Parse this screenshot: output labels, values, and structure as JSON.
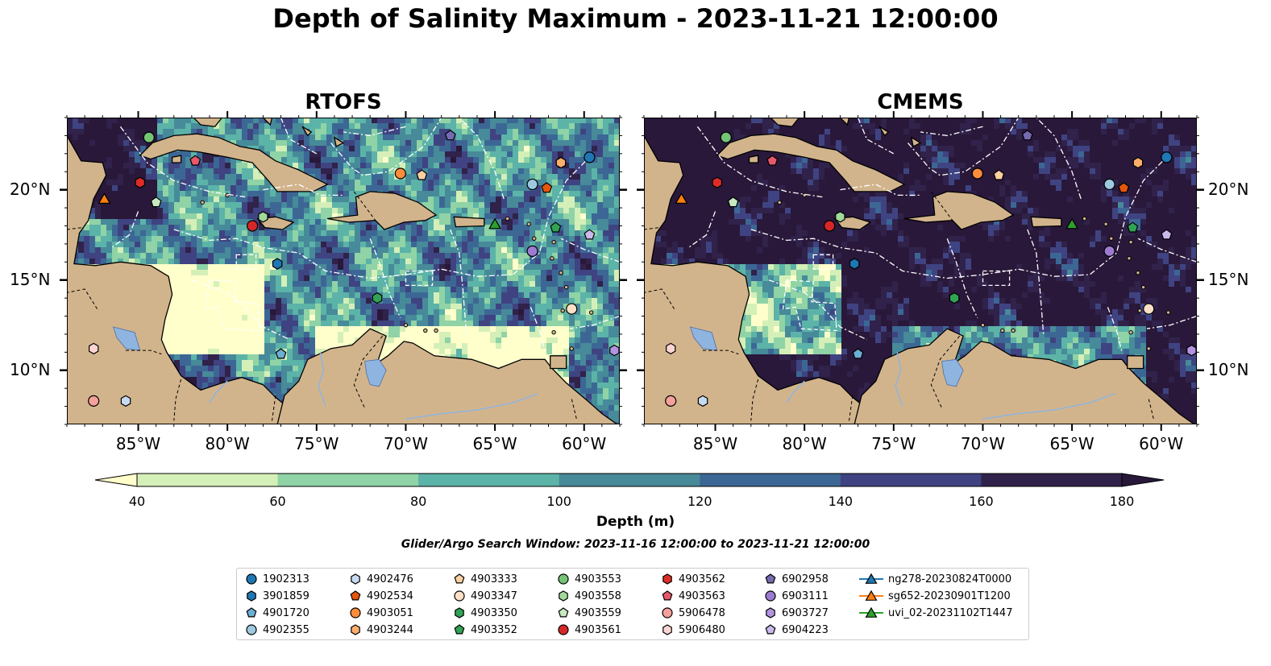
{
  "title": "Depth of Salinity Maximum - 2023-11-21 12:00:00",
  "panels": [
    {
      "title": "RTOFS",
      "seed": 7,
      "bias": 0.0
    },
    {
      "title": "CMEMS",
      "seed": 19,
      "bias": 0.55
    }
  ],
  "map": {
    "lon_range": [
      -89,
      -58
    ],
    "lat_range": [
      7,
      24
    ],
    "lon_ticks": [
      {
        "value": -85,
        "label": "85°W"
      },
      {
        "value": -80,
        "label": "80°W"
      },
      {
        "value": -75,
        "label": "75°W"
      },
      {
        "value": -70,
        "label": "70°W"
      },
      {
        "value": -65,
        "label": "65°W"
      },
      {
        "value": -60,
        "label": "60°W"
      }
    ],
    "lat_ticks": [
      {
        "value": 20,
        "label": "20°N"
      },
      {
        "value": 15,
        "label": "15°N"
      },
      {
        "value": 10,
        "label": "10°N"
      }
    ],
    "land_color": "#d2b48c",
    "lake_color": "#8fb4e0"
  },
  "colorbar": {
    "label": "Depth (m)",
    "ticks": [
      40,
      60,
      80,
      100,
      120,
      140,
      160,
      180
    ],
    "tick_labels": [
      "40",
      "60",
      "80",
      "100",
      "120",
      "140",
      "160",
      "180"
    ],
    "colors": [
      "#ffffcc",
      "#d5efb8",
      "#8fd3a6",
      "#5cb3a8",
      "#478a99",
      "#3c6795",
      "#3f4381",
      "#30224a",
      "#29183a"
    ]
  },
  "search_window": "Glider/Argo Search Window: 2023-11-16 12:00:00 to 2023-11-21 12:00:00",
  "legend": {
    "columns": [
      [
        {
          "label": "1902313",
          "marker": "circle",
          "color": "#1f77b4"
        },
        {
          "label": "3901859",
          "marker": "hexagon",
          "color": "#1f77b4"
        },
        {
          "label": "4901720",
          "marker": "pentagon",
          "color": "#6baed6"
        },
        {
          "label": "4902355",
          "marker": "circle",
          "color": "#9ecae1"
        }
      ],
      [
        {
          "label": "4902476",
          "marker": "hexagon",
          "color": "#c6dbef"
        },
        {
          "label": "4902534",
          "marker": "pentagon",
          "color": "#e6550d"
        },
        {
          "label": "4903051",
          "marker": "circle",
          "color": "#fd8d3c"
        },
        {
          "label": "4903244",
          "marker": "hexagon",
          "color": "#fdae6b"
        }
      ],
      [
        {
          "label": "4903333",
          "marker": "pentagon",
          "color": "#fdd0a2"
        },
        {
          "label": "4903347",
          "marker": "circle",
          "color": "#fde0c5"
        },
        {
          "label": "4903350",
          "marker": "hexagon",
          "color": "#31a354"
        },
        {
          "label": "4903352",
          "marker": "pentagon",
          "color": "#31a354"
        }
      ],
      [
        {
          "label": "4903553",
          "marker": "circle",
          "color": "#74c476"
        },
        {
          "label": "4903558",
          "marker": "hexagon",
          "color": "#a1d99b"
        },
        {
          "label": "4903559",
          "marker": "pentagon",
          "color": "#c7e9c0"
        },
        {
          "label": "4903561",
          "marker": "circle",
          "color": "#d62728"
        }
      ],
      [
        {
          "label": "4903562",
          "marker": "hexagon",
          "color": "#de2d26"
        },
        {
          "label": "4903563",
          "marker": "pentagon",
          "color": "#e7596a"
        },
        {
          "label": "5906478",
          "marker": "circle",
          "color": "#f4a09c"
        },
        {
          "label": "5906480",
          "marker": "hexagon",
          "color": "#fcd5d2"
        }
      ],
      [
        {
          "label": "6902958",
          "marker": "pentagon",
          "color": "#756bb1"
        },
        {
          "label": "6903111",
          "marker": "circle",
          "color": "#9e7bd1"
        },
        {
          "label": "6903727",
          "marker": "hexagon",
          "color": "#b294e0"
        },
        {
          "label": "6904223",
          "marker": "pentagon",
          "color": "#cbb8ec"
        }
      ],
      [
        {
          "label": "ng278-20230824T0000",
          "marker": "triangle",
          "color": "#1f77b4"
        },
        {
          "label": "sg652-20230901T1200",
          "marker": "triangle",
          "color": "#ff7f0e"
        },
        {
          "label": "uvi_02-20231102T1447",
          "marker": "triangle",
          "color": "#2ca02c"
        }
      ]
    ]
  },
  "observations": [
    {
      "id": "1902313",
      "lon": -59.7,
      "lat": 21.8,
      "marker": "circle",
      "color": "#1f77b4"
    },
    {
      "id": "3901859",
      "lon": -77.2,
      "lat": 15.9,
      "marker": "hexagon",
      "color": "#1f77b4"
    },
    {
      "id": "4901720",
      "lon": -77.0,
      "lat": 10.9,
      "marker": "pentagon",
      "color": "#6baed6"
    },
    {
      "id": "4902355",
      "lon": -62.9,
      "lat": 20.3,
      "marker": "circle",
      "color": "#9ecae1"
    },
    {
      "id": "4902476",
      "lon": -85.7,
      "lat": 8.3,
      "marker": "hexagon",
      "color": "#c6dbef"
    },
    {
      "id": "4902534",
      "lon": -62.1,
      "lat": 20.1,
      "marker": "pentagon",
      "color": "#e6550d"
    },
    {
      "id": "4903051",
      "lon": -70.3,
      "lat": 20.9,
      "marker": "circle",
      "color": "#fd8d3c"
    },
    {
      "id": "4903244",
      "lon": -61.3,
      "lat": 21.5,
      "marker": "hexagon",
      "color": "#fdae6b"
    },
    {
      "id": "4903333",
      "lon": -69.1,
      "lat": 20.8,
      "marker": "pentagon",
      "color": "#fdd0a2"
    },
    {
      "id": "4903347",
      "lon": -60.7,
      "lat": 13.4,
      "marker": "circle",
      "color": "#fde0c5"
    },
    {
      "id": "4903350",
      "lon": -71.6,
      "lat": 14.0,
      "marker": "hexagon",
      "color": "#31a354"
    },
    {
      "id": "4903352",
      "lon": -61.6,
      "lat": 17.9,
      "marker": "pentagon",
      "color": "#31a354"
    },
    {
      "id": "4903553",
      "lon": -84.4,
      "lat": 22.9,
      "marker": "circle",
      "color": "#74c476"
    },
    {
      "id": "4903558",
      "lon": -78.0,
      "lat": 18.5,
      "marker": "hexagon",
      "color": "#a1d99b"
    },
    {
      "id": "4903559",
      "lon": -84.0,
      "lat": 19.3,
      "marker": "pentagon",
      "color": "#c7e9c0"
    },
    {
      "id": "4903561",
      "lon": -78.6,
      "lat": 18.0,
      "marker": "circle",
      "color": "#d62728"
    },
    {
      "id": "4903562",
      "lon": -84.9,
      "lat": 20.4,
      "marker": "hexagon",
      "color": "#de2d26"
    },
    {
      "id": "4903563",
      "lon": -81.8,
      "lat": 21.6,
      "marker": "pentagon",
      "color": "#e7596a"
    },
    {
      "id": "5906478",
      "lon": -87.5,
      "lat": 8.3,
      "marker": "circle",
      "color": "#f4a09c"
    },
    {
      "id": "5906480",
      "lon": -87.5,
      "lat": 11.2,
      "marker": "hexagon",
      "color": "#fcd5d2"
    },
    {
      "id": "6902958",
      "lon": -67.5,
      "lat": 23.0,
      "marker": "pentagon",
      "color": "#756bb1"
    },
    {
      "id": "6903111",
      "lon": -62.9,
      "lat": 16.6,
      "marker": "circle",
      "color": "#9e7bd1"
    },
    {
      "id": "6903727",
      "lon": -58.3,
      "lat": 11.1,
      "marker": "hexagon",
      "color": "#b294e0"
    },
    {
      "id": "6904223",
      "lon": -59.7,
      "lat": 17.5,
      "marker": "pentagon",
      "color": "#cbb8ec"
    },
    {
      "id": "sg652-20230901T1200",
      "lon": -86.9,
      "lat": 19.5,
      "marker": "triangle",
      "color": "#ff7f0e"
    },
    {
      "id": "uvi_02-20231102T1447",
      "lon": -65.0,
      "lat": 18.1,
      "marker": "triangle",
      "color": "#2ca02c"
    }
  ]
}
